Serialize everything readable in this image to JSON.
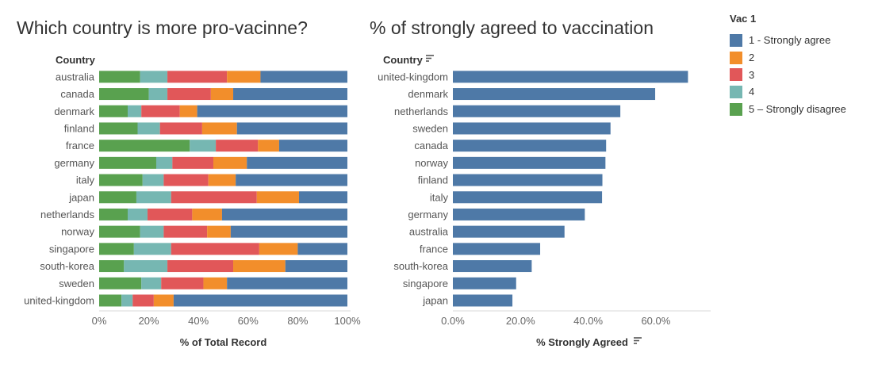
{
  "chart_data": [
    {
      "type": "bar",
      "orientation": "horizontal",
      "stacked": true,
      "title": "Which country is more pro-vacinne?",
      "row_header": "Country",
      "xlabel": "% of Total Record",
      "xlim": [
        0,
        100
      ],
      "xticks": [
        "0%",
        "20%",
        "40%",
        "60%",
        "80%",
        "100%"
      ],
      "categories": [
        "australia",
        "canada",
        "denmark",
        "finland",
        "france",
        "germany",
        "italy",
        "japan",
        "netherlands",
        "norway",
        "singapore",
        "south-korea",
        "sweden",
        "united-kingdom"
      ],
      "series": [
        {
          "name": "5 – Strongly disagree",
          "color": "#59a14f",
          "values": [
            16.5,
            20,
            11.5,
            15.5,
            36.5,
            23,
            17.5,
            15,
            11.5,
            16.5,
            14,
            10,
            17,
            9
          ]
        },
        {
          "name": "4",
          "color": "#76b7b2",
          "values": [
            11,
            7.5,
            5.5,
            9,
            10.5,
            6.5,
            8.5,
            14,
            8,
            9.5,
            15,
            17.5,
            8,
            4.5
          ]
        },
        {
          "name": "3",
          "color": "#e15759",
          "values": [
            24,
            17.5,
            15.5,
            17,
            17,
            16.5,
            18,
            34.5,
            18,
            17.5,
            35.5,
            26.5,
            17,
            8.5
          ]
        },
        {
          "name": "2",
          "color": "#f28e2b",
          "values": [
            13.5,
            9,
            7,
            14,
            8.5,
            13.5,
            11,
            17,
            12,
            9.5,
            15.5,
            21,
            9.5,
            8
          ]
        },
        {
          "name": "1 - Strongly agree",
          "color": "#4e79a7",
          "values": [
            35,
            46,
            60.5,
            44.5,
            27.5,
            40.5,
            45,
            19.5,
            50.5,
            47,
            20,
            25,
            48.5,
            70
          ]
        }
      ]
    },
    {
      "type": "bar",
      "orientation": "horizontal",
      "title": "% of strongly agreed to vaccination",
      "row_header": "Country",
      "xlabel": "% Strongly Agreed",
      "xlim": [
        0,
        72
      ],
      "xticks": [
        "0.0%",
        "20.0%",
        "40.0%",
        "60.0%"
      ],
      "categories": [
        "united-kingdom",
        "denmark",
        "netherlands",
        "sweden",
        "canada",
        "norway",
        "finland",
        "italy",
        "germany",
        "australia",
        "france",
        "south-korea",
        "singapore",
        "japan"
      ],
      "values": [
        69.5,
        59.8,
        49.5,
        46.6,
        45.3,
        45.1,
        44.2,
        44.1,
        39.0,
        33.0,
        25.8,
        23.3,
        18.7,
        17.6
      ],
      "color": "#4e79a7"
    }
  ],
  "legend": {
    "title": "Vac 1",
    "items": [
      {
        "label": "1 - Strongly agree",
        "color": "#4e79a7"
      },
      {
        "label": "2",
        "color": "#f28e2b"
      },
      {
        "label": "3",
        "color": "#e15759"
      },
      {
        "label": "4",
        "color": "#76b7b2"
      },
      {
        "label": "5 – Strongly disagree",
        "color": "#59a14f"
      }
    ]
  }
}
